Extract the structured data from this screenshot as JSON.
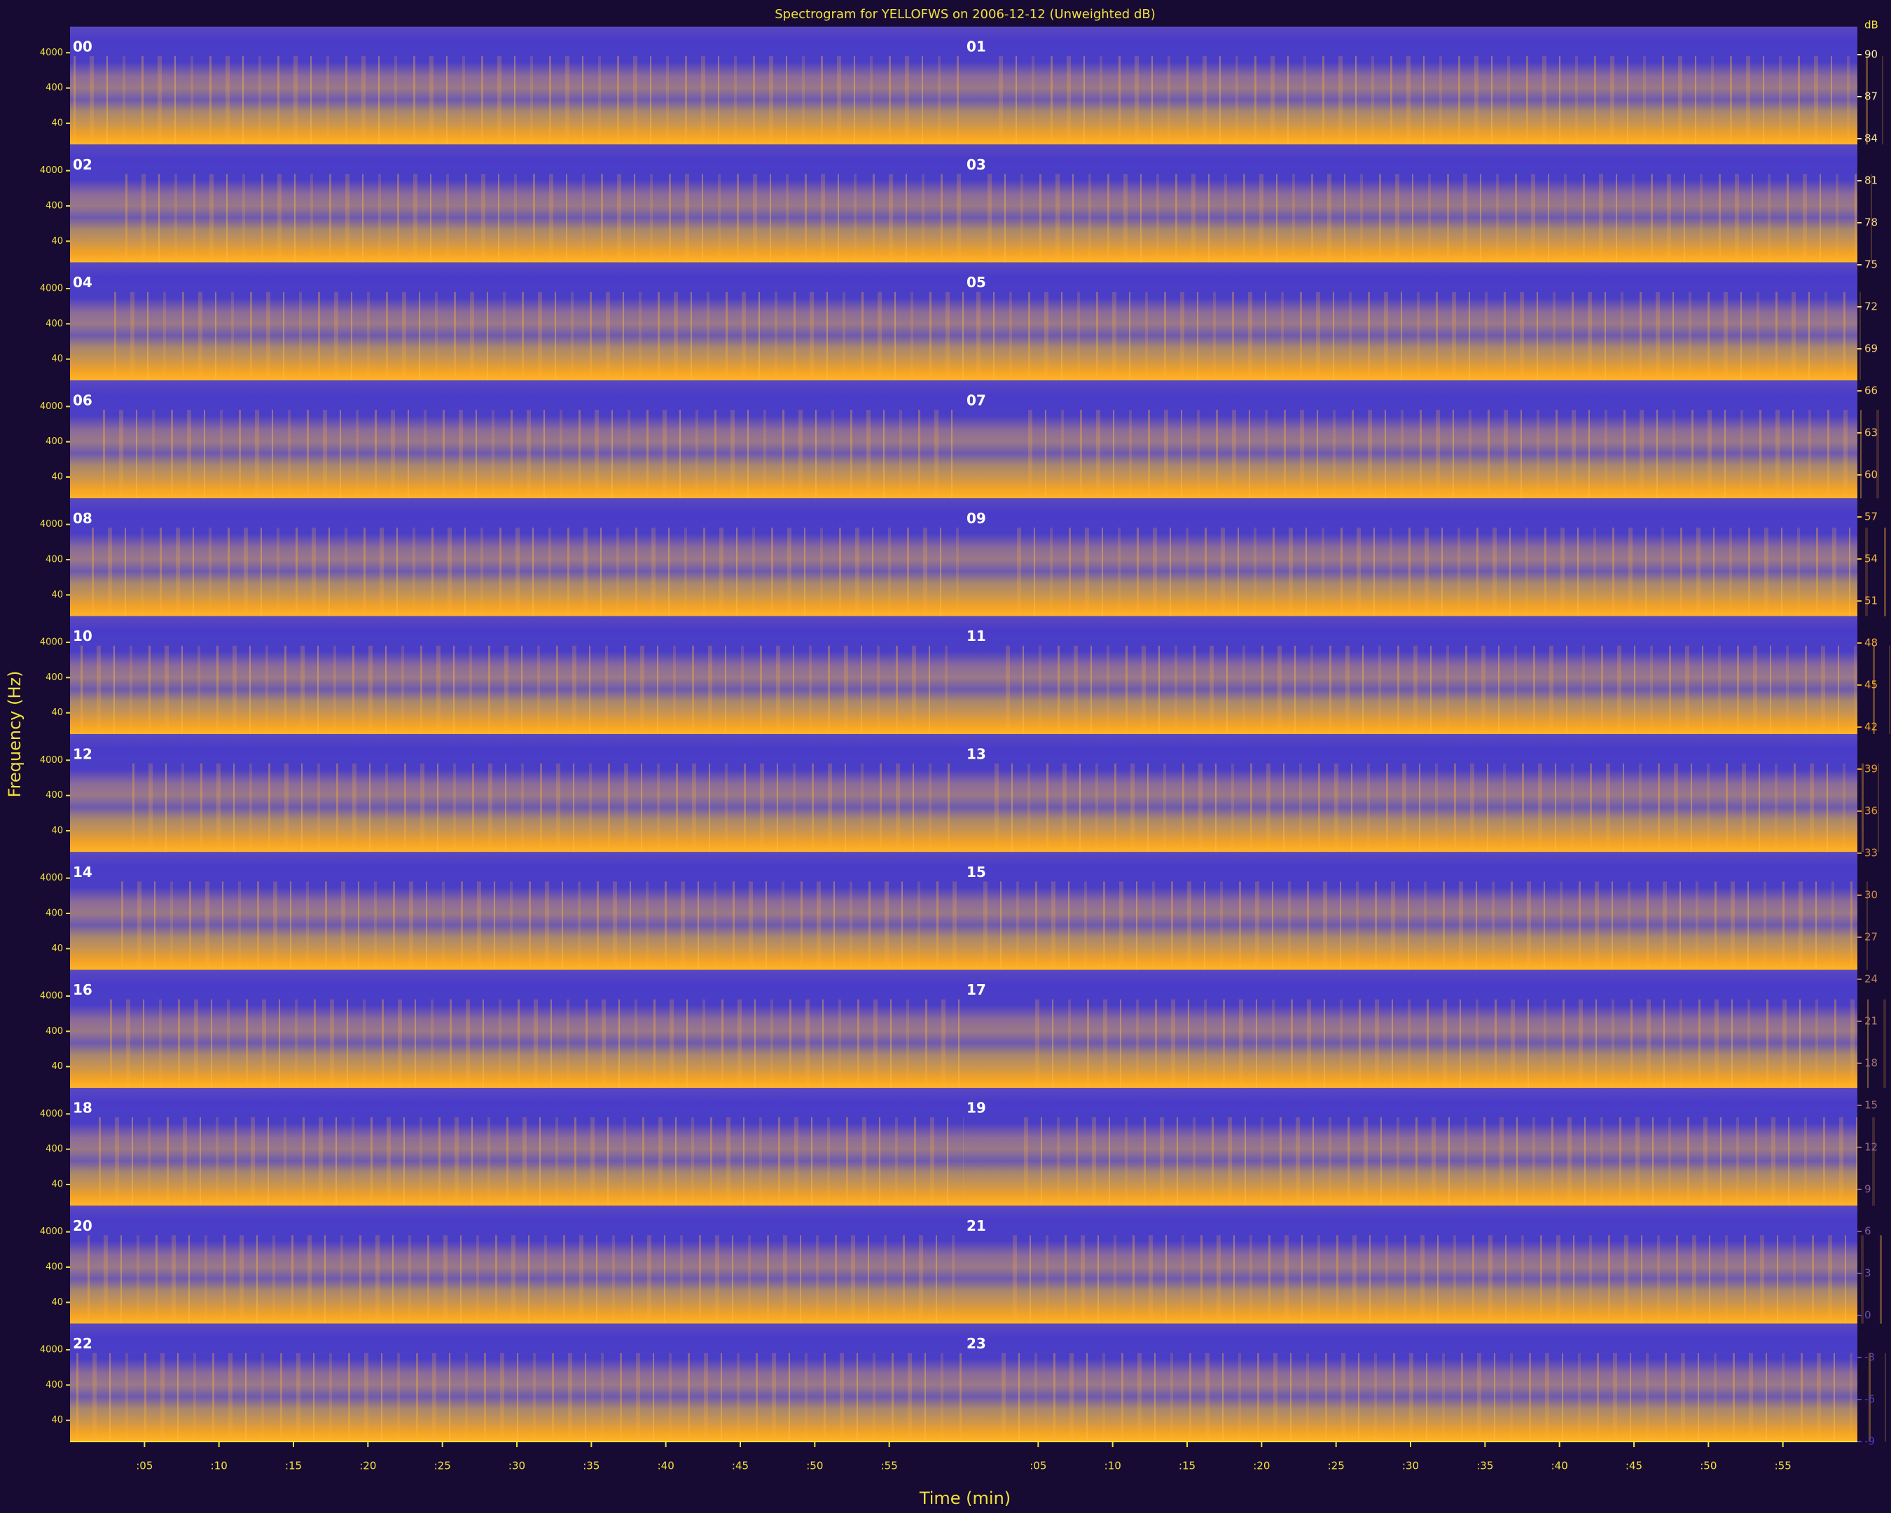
{
  "chart_data": {
    "type": "spectrogram",
    "title": "Spectrogram for YELLOFWS on 2006-12-12 (Unweighted dB)",
    "x_label": "Time (min)",
    "y_label": "Frequency (Hz)",
    "panels": [
      "00",
      "01",
      "02",
      "03",
      "04",
      "05",
      "06",
      "07",
      "08",
      "09",
      "10",
      "11",
      "12",
      "13",
      "14",
      "15",
      "16",
      "17",
      "18",
      "19",
      "20",
      "21",
      "22",
      "23"
    ],
    "xlim": [
      0,
      60
    ],
    "xticks": [
      {
        "value": 5,
        "label": ":05"
      },
      {
        "value": 10,
        "label": ":10"
      },
      {
        "value": 15,
        "label": ":15"
      },
      {
        "value": 20,
        "label": ":20"
      },
      {
        "value": 25,
        "label": ":25"
      },
      {
        "value": 30,
        "label": ":30"
      },
      {
        "value": 35,
        "label": ":35"
      },
      {
        "value": 40,
        "label": ":40"
      },
      {
        "value": 45,
        "label": ":45"
      },
      {
        "value": 50,
        "label": ":50"
      },
      {
        "value": 55,
        "label": ":55"
      }
    ],
    "ylim": [
      10,
      22050
    ],
    "yticks": [
      40,
      400,
      4000
    ],
    "log_y": true,
    "colorbar_label": "dB",
    "zlim": [
      -9,
      92
    ],
    "zticks": [
      90,
      87,
      84,
      81,
      78,
      75,
      72,
      69,
      66,
      63,
      60,
      57,
      54,
      51,
      48,
      45,
      42,
      39,
      36,
      33,
      30,
      27,
      24,
      21,
      18,
      15,
      12,
      9,
      6,
      3,
      0,
      -3,
      -6,
      -9
    ],
    "colormap": [
      "#4a3cc8",
      "#f5a41e",
      "#fff4b0"
    ]
  }
}
